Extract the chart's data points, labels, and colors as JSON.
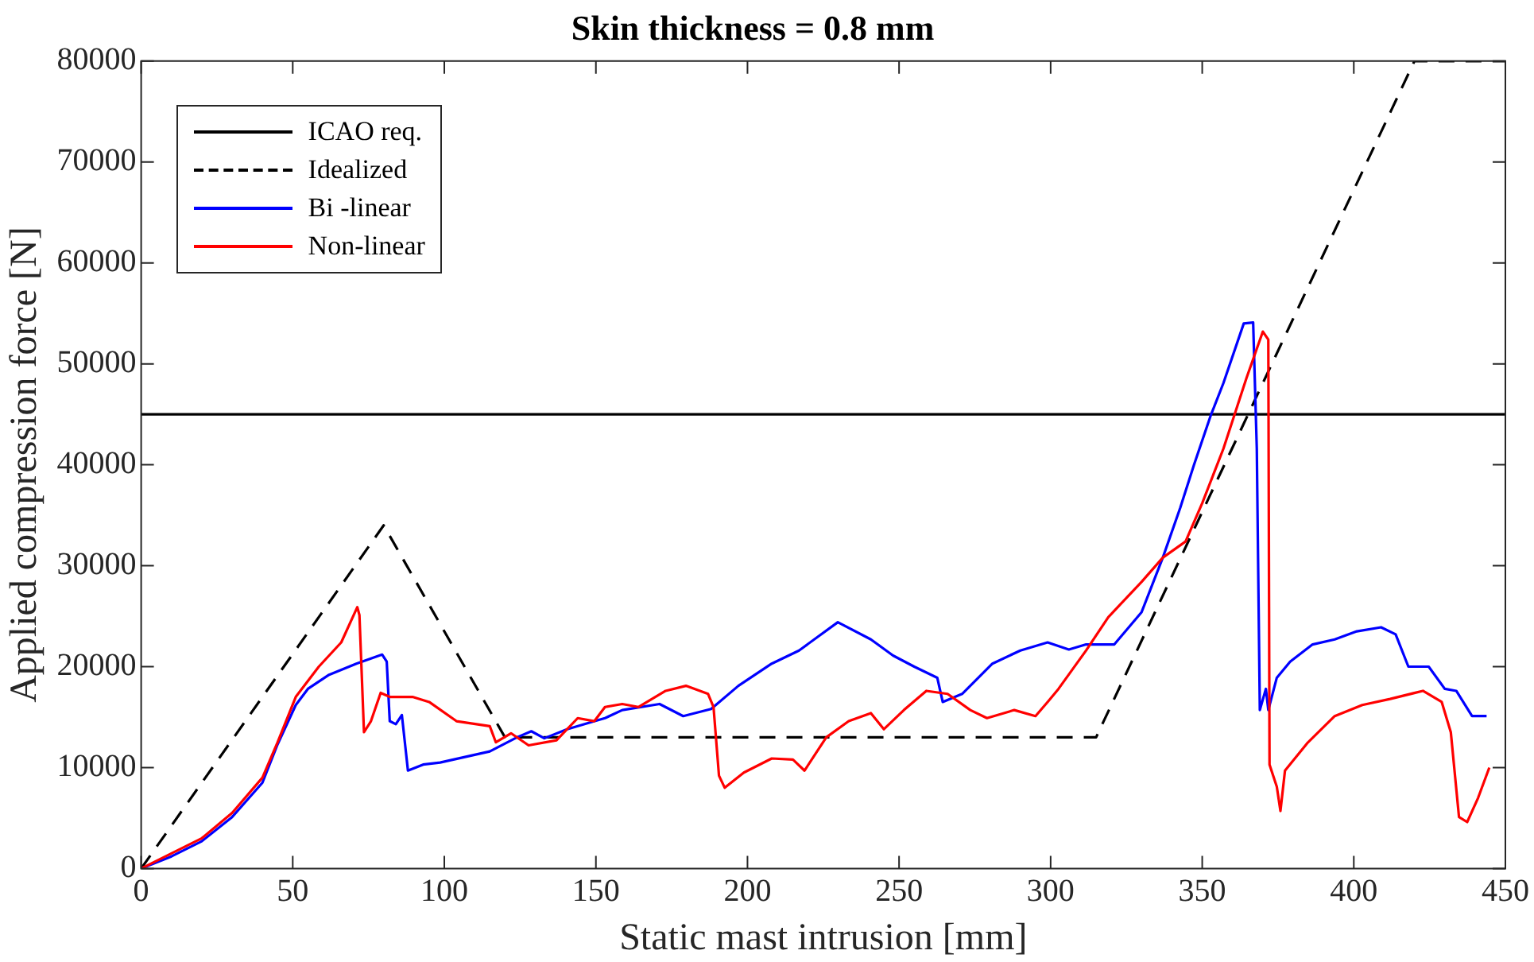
{
  "chart_data": {
    "type": "line",
    "title": "Skin thickness = 0.8 mm",
    "xlabel": "Static mast intrusion [mm]",
    "ylabel": "Applied compression force [N]",
    "xlim": [
      0,
      450
    ],
    "xticks": [
      0,
      50,
      100,
      150,
      200,
      250,
      300,
      350,
      400,
      450
    ],
    "ylim": [
      0,
      80000
    ],
    "yticks": [
      0,
      10000,
      20000,
      30000,
      40000,
      50000,
      60000,
      70000,
      80000
    ],
    "grid": false,
    "legend": "top left",
    "marker": "none",
    "series": [
      {
        "name": "ICAO req.",
        "color": "#000000",
        "line_style": "solid",
        "x": [
          0,
          450
        ],
        "values": [
          45000,
          45000
        ]
      },
      {
        "name": "Idealized",
        "color": "#000000",
        "line_style": "dashed",
        "x": [
          0,
          80,
          120,
          315,
          420,
          450
        ],
        "values": [
          0,
          34000,
          13000,
          13000,
          80000,
          80000
        ]
      },
      {
        "name": "Bi -linear",
        "color": "#0000ff",
        "line_style": "solid",
        "x": [
          0,
          10,
          20,
          30,
          40,
          45,
          51,
          55,
          62,
          71,
          79.5,
          81,
          82,
          84,
          86,
          88,
          93,
          98.6,
          115,
          124,
          128.7,
          133,
          140.5,
          149.6,
          153,
          158.7,
          171,
          178.8,
          188,
          197,
          208,
          217,
          229.8,
          240.7,
          248,
          255,
          262.6,
          264.4,
          270.8,
          280.8,
          290,
          299,
          306,
          311.7,
          321,
          330,
          337,
          342.7,
          347.3,
          352.7,
          357,
          363.7,
          366.8,
          368,
          369,
          371,
          371.8,
          374.6,
          379,
          386.4,
          393.7,
          401,
          409,
          413.8,
          418,
          424.7,
          430,
          433.8,
          439,
          443.8
        ],
        "values": [
          0,
          1200,
          2700,
          5100,
          8500,
          12300,
          16200,
          17800,
          19200,
          20300,
          21200,
          20500,
          14600,
          14300,
          15200,
          9700,
          10300,
          10500,
          11600,
          13000,
          13600,
          12900,
          13800,
          14600,
          14900,
          15700,
          16300,
          15100,
          15800,
          18100,
          20300,
          21600,
          24400,
          22700,
          21100,
          20000,
          18900,
          16500,
          17300,
          20300,
          21600,
          22400,
          21700,
          22200,
          22200,
          25400,
          30800,
          35700,
          40000,
          44800,
          48100,
          54000,
          54100,
          41600,
          15700,
          17800,
          15700,
          18900,
          20500,
          22200,
          22700,
          23500,
          23900,
          23200,
          20000,
          20000,
          17800,
          17600,
          15100,
          15100
        ]
      },
      {
        "name": "Non-linear",
        "color": "#ff0000",
        "line_style": "solid",
        "x": [
          0,
          10,
          20,
          30,
          40,
          45,
          51,
          58.6,
          66,
          71.3,
          72,
          73.5,
          75.8,
          79,
          82,
          89.5,
          95,
          104,
          115,
          117,
          122,
          127.8,
          137,
          144,
          149.5,
          153,
          158.7,
          164,
          173,
          179.7,
          187,
          188.8,
          190.6,
          192.5,
          198.8,
          208,
          215,
          218.8,
          226,
          233.4,
          240.7,
          245,
          251.6,
          259,
          266,
          273.5,
          279,
          288,
          295,
          299,
          302.6,
          311.7,
          319,
          330,
          337,
          344.5,
          350,
          357,
          364.6,
          370,
          371.8,
          372.2,
          374.6,
          375.8,
          377.3,
          384.6,
          393.7,
          402.8,
          412,
          422.8,
          429,
          432,
          434.7,
          437.4,
          441,
          444.7
        ],
        "values": [
          0,
          1500,
          3000,
          5500,
          9000,
          12500,
          17000,
          20000,
          22400,
          25900,
          25100,
          13500,
          14600,
          17400,
          17000,
          17000,
          16500,
          14600,
          14100,
          12500,
          13400,
          12200,
          12700,
          14900,
          14600,
          16000,
          16300,
          16000,
          17600,
          18100,
          17300,
          16000,
          9200,
          8000,
          9500,
          10900,
          10800,
          9700,
          13000,
          14600,
          15400,
          13800,
          15700,
          17600,
          17300,
          15700,
          14900,
          15700,
          15100,
          16500,
          17800,
          21600,
          24900,
          28400,
          30800,
          32400,
          36200,
          41600,
          48600,
          53200,
          52400,
          10300,
          8100,
          5700,
          9700,
          12400,
          15100,
          16200,
          16800,
          17600,
          16500,
          13500,
          5100,
          4600,
          7000,
          10000
        ]
      }
    ]
  }
}
